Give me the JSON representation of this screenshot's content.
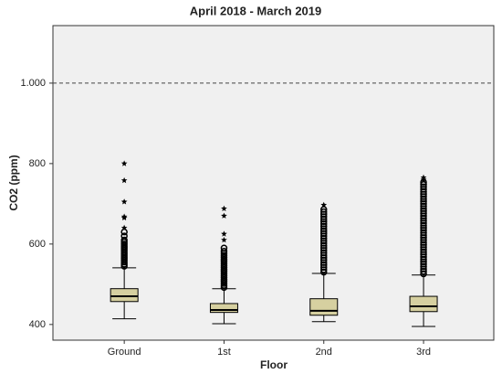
{
  "chart_data": {
    "type": "box",
    "title": "April 2018 - March 2019",
    "x_label": "Floor",
    "y_label": "CO2 (ppm)",
    "categories": [
      "Ground",
      "1st",
      "2nd",
      "3rd"
    ],
    "color": "#d6d0a0",
    "ylim": [
      361,
      1143
    ],
    "yticks": [
      400,
      600,
      800,
      {
        "value": 1000,
        "label": "1.000"
      }
    ],
    "reference_line": 1000,
    "boxes": [
      {
        "min": 414,
        "q1": 457,
        "median": 470,
        "q3": 489,
        "max": 541,
        "outliers": [
          545,
          550,
          555,
          560,
          565,
          570,
          575,
          580,
          585,
          590,
          595,
          600,
          605,
          610,
          620,
          630
        ],
        "extremes": [
          640,
          665,
          668,
          705,
          758,
          800
        ]
      },
      {
        "min": 402,
        "q1": 430,
        "median": 436,
        "q3": 452,
        "max": 489,
        "outliers": [
          492,
          497,
          502,
          507,
          512,
          517,
          522,
          527,
          532,
          537,
          542,
          547,
          552,
          557,
          562,
          567,
          572,
          577,
          582,
          590
        ],
        "extremes": [
          610,
          625,
          670,
          688
        ]
      },
      {
        "min": 407,
        "q1": 423,
        "median": 434,
        "q3": 464,
        "max": 527,
        "outliers": [
          530,
          536,
          542,
          548,
          554,
          560,
          566,
          572,
          578,
          584,
          590,
          596,
          602,
          608,
          614,
          620,
          626,
          632,
          638,
          644,
          650,
          656,
          662,
          668,
          674,
          680,
          686
        ],
        "extremes": [
          697
        ]
      },
      {
        "min": 395,
        "q1": 432,
        "median": 445,
        "q3": 470,
        "max": 523,
        "outliers": [
          526,
          532,
          538,
          544,
          550,
          556,
          562,
          568,
          574,
          580,
          586,
          592,
          598,
          604,
          610,
          616,
          622,
          628,
          634,
          640,
          646,
          652,
          658,
          664,
          670,
          676,
          682,
          688,
          694,
          700,
          706,
          712,
          718,
          724,
          730,
          736,
          742,
          748,
          754
        ],
        "extremes": [
          760,
          765
        ]
      }
    ]
  }
}
